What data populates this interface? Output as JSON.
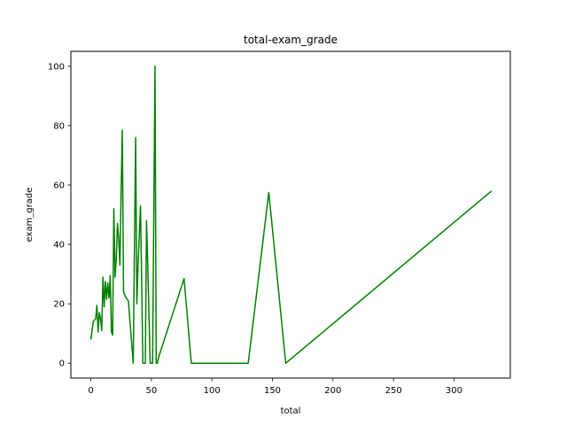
{
  "chart_data": {
    "type": "line",
    "title": "total-exam_grade",
    "xlabel": "total",
    "ylabel": "exam_grade",
    "xlim": [
      -16.5,
      346.5
    ],
    "ylim": [
      -5,
      105
    ],
    "x_ticks": [
      0,
      50,
      100,
      150,
      200,
      250,
      300
    ],
    "y_ticks": [
      0,
      20,
      40,
      60,
      80,
      100
    ],
    "grid": false,
    "legend": "none",
    "series": [
      {
        "color": "#008000",
        "x": [
          0,
          2,
          4,
          5,
          6,
          7,
          8,
          9,
          10,
          11,
          12,
          13,
          14,
          15,
          16,
          17,
          18,
          19,
          20,
          21,
          22,
          23,
          24,
          25,
          26,
          27,
          28,
          29,
          31,
          35,
          37,
          38,
          39,
          41,
          43,
          45,
          46,
          47,
          49,
          51,
          53,
          54,
          55,
          56,
          77,
          83,
          130,
          147,
          161,
          331
        ],
        "y": [
          8,
          14,
          15,
          19.5,
          10.5,
          17,
          15,
          11,
          29,
          19,
          27.5,
          21.5,
          27,
          22,
          29.5,
          10.5,
          9.5,
          52,
          29,
          35,
          47,
          42,
          33,
          58,
          78.5,
          24,
          23,
          22,
          21,
          0,
          76,
          20,
          33,
          53,
          0,
          0,
          48,
          33,
          0,
          0,
          100,
          0,
          0,
          2,
          28.5,
          0,
          0,
          57.5,
          0,
          58
        ]
      }
    ]
  }
}
